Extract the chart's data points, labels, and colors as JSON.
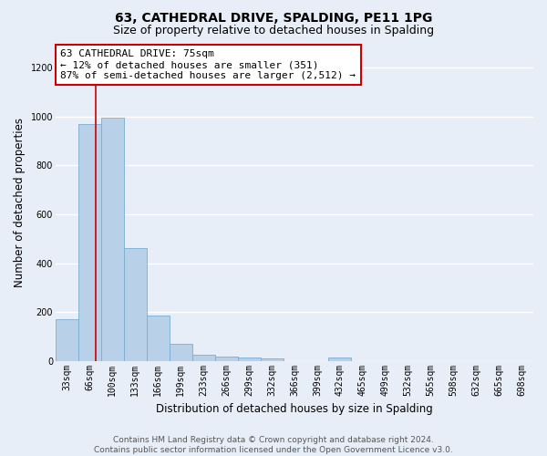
{
  "title": "63, CATHEDRAL DRIVE, SPALDING, PE11 1PG",
  "subtitle": "Size of property relative to detached houses in Spalding",
  "xlabel": "Distribution of detached houses by size in Spalding",
  "ylabel": "Number of detached properties",
  "categories": [
    "33sqm",
    "66sqm",
    "100sqm",
    "133sqm",
    "166sqm",
    "199sqm",
    "233sqm",
    "266sqm",
    "299sqm",
    "332sqm",
    "366sqm",
    "399sqm",
    "432sqm",
    "465sqm",
    "499sqm",
    "532sqm",
    "565sqm",
    "598sqm",
    "632sqm",
    "665sqm",
    "698sqm"
  ],
  "values": [
    170,
    970,
    995,
    462,
    185,
    70,
    25,
    18,
    15,
    10,
    0,
    0,
    12,
    0,
    0,
    0,
    0,
    0,
    0,
    0,
    0
  ],
  "bar_color": "#b8d0e8",
  "bar_edge_color": "#7aadd4",
  "vline_x": 1.27,
  "vline_color": "#cc0000",
  "annotation_text": "63 CATHEDRAL DRIVE: 75sqm\n← 12% of detached houses are smaller (351)\n87% of semi-detached houses are larger (2,512) →",
  "annotation_box_color": "#ffffff",
  "annotation_box_edge_color": "#cc0000",
  "ylim": [
    0,
    1300
  ],
  "yticks": [
    0,
    200,
    400,
    600,
    800,
    1000,
    1200
  ],
  "background_color": "#e8eef8",
  "grid_color": "#ffffff",
  "footer_text": "Contains HM Land Registry data © Crown copyright and database right 2024.\nContains public sector information licensed under the Open Government Licence v3.0.",
  "title_fontsize": 10,
  "subtitle_fontsize": 9,
  "xlabel_fontsize": 8.5,
  "ylabel_fontsize": 8.5,
  "tick_fontsize": 7,
  "annotation_fontsize": 8,
  "footer_fontsize": 6.5
}
